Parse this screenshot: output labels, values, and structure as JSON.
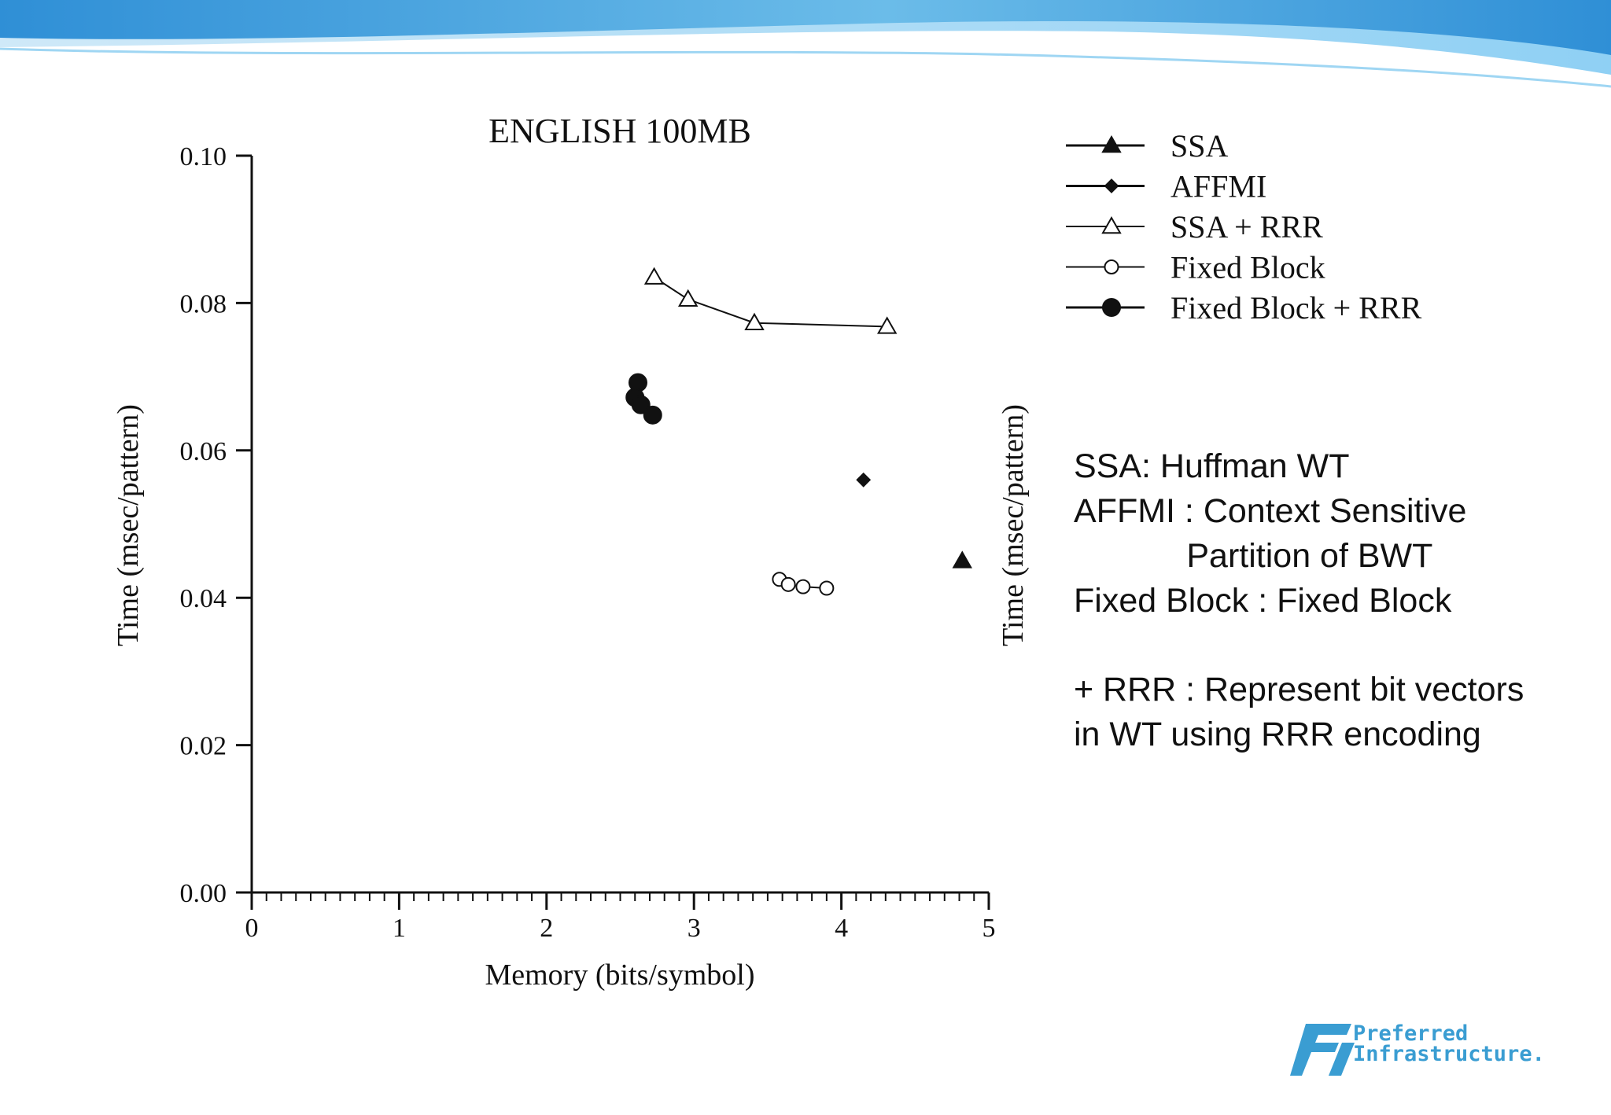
{
  "theme": {
    "banner_colors": [
      "#2f8fd6",
      "#8fd0f4",
      "#cfe9f8"
    ],
    "logo_color": "#3a9dd2",
    "ink": "#111111"
  },
  "chart_data": {
    "type": "scatter",
    "title": "ENGLISH 100MB",
    "xlabel": "Memory (bits/symbol)",
    "ylabel": "Time (msec/pattern)",
    "right_ylabel": "Time (msec/pattern)",
    "xlim": [
      0,
      5
    ],
    "ylim": [
      0,
      0.1
    ],
    "x_ticks": [
      "0",
      "1",
      "2",
      "3",
      "4",
      "5"
    ],
    "y_ticks": [
      "0.00",
      "0.02",
      "0.04",
      "0.06",
      "0.08",
      "0.10"
    ],
    "legend_position": "top-right",
    "series": [
      {
        "name": "SSA",
        "marker": "filled-triangle",
        "points": [
          [
            4.82,
            0.045
          ]
        ]
      },
      {
        "name": "AFFMI",
        "marker": "filled-diamond",
        "points": [
          [
            4.15,
            0.056
          ]
        ]
      },
      {
        "name": "SSA + RRR",
        "marker": "open-triangle",
        "connected": true,
        "points": [
          [
            2.73,
            0.0835
          ],
          [
            2.96,
            0.0805
          ],
          [
            3.41,
            0.0773
          ],
          [
            4.31,
            0.0768
          ]
        ]
      },
      {
        "name": "Fixed Block",
        "marker": "open-circle",
        "connected": true,
        "points": [
          [
            3.58,
            0.0425
          ],
          [
            3.64,
            0.0418
          ],
          [
            3.74,
            0.0415
          ],
          [
            3.9,
            0.0413
          ]
        ]
      },
      {
        "name": "Fixed Block + RRR",
        "marker": "filled-circle",
        "connected": true,
        "points": [
          [
            2.62,
            0.0692
          ],
          [
            2.6,
            0.0672
          ],
          [
            2.64,
            0.0662
          ],
          [
            2.72,
            0.0648
          ]
        ]
      }
    ]
  },
  "notes": {
    "lines": [
      "SSA: Huffman WT",
      "AFFMI : Context Sensitive",
      "            Partition of BWT",
      "Fixed Block : Fixed Block",
      "",
      "+ RRR : Represent bit vectors",
      "in WT using RRR encoding"
    ]
  },
  "logo": {
    "line1": "Preferred",
    "line2": "Infrastructure."
  }
}
